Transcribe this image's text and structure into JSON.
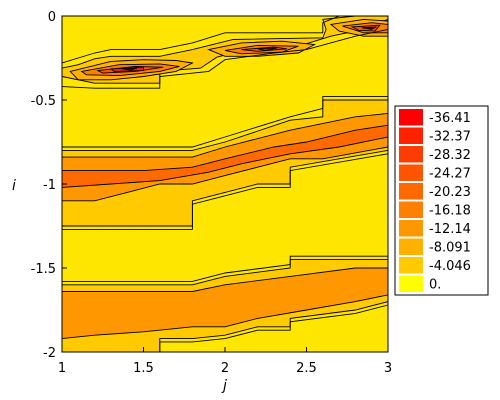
{
  "chart_data": {
    "type": "contour",
    "title": "",
    "xlabel": "j",
    "ylabel": "i",
    "xlim": [
      1,
      3
    ],
    "ylim": [
      -2,
      0
    ],
    "x_ticks": [
      "1",
      "1.5",
      "2",
      "2.5",
      "3"
    ],
    "y_ticks": [
      "0",
      "-0.5",
      "-1",
      "-1.5",
      "-2"
    ],
    "legend_position": "right",
    "legend": {
      "entries": [
        {
          "label": "-36.41",
          "value": -36.41,
          "color": "#ff0000"
        },
        {
          "label": "-32.37",
          "value": -32.37,
          "color": "#ff2200"
        },
        {
          "label": "-28.32",
          "value": -28.32,
          "color": "#ff3c00"
        },
        {
          "label": "-24.27",
          "value": -24.27,
          "color": "#ff5400"
        },
        {
          "label": "-20.23",
          "value": -20.23,
          "color": "#ff6a00"
        },
        {
          "label": "-16.18",
          "value": -16.18,
          "color": "#ff8000"
        },
        {
          "label": "-12.14",
          "value": -12.14,
          "color": "#ff9800"
        },
        {
          "label": "-8.091",
          "value": -8.091,
          "color": "#ffb000"
        },
        {
          "label": "-4.046",
          "value": -4.046,
          "color": "#ffca00"
        },
        {
          "label": "0.",
          "value": 0,
          "color": "#ffff00"
        }
      ]
    },
    "background_color": "#ffe600",
    "regions": [
      {
        "level": -4.046,
        "color": "#ffca00",
        "points": [
          [
            1.2,
            -0.255
          ],
          [
            1.3,
            -0.24
          ],
          [
            1.6,
            -0.24
          ],
          [
            1.8,
            -0.2
          ],
          [
            2.05,
            -0.14
          ],
          [
            2.6,
            -0.13
          ],
          [
            2.62,
            -0.08
          ],
          [
            2.6,
            -0.02
          ],
          [
            2.8,
            0
          ],
          [
            3,
            0
          ],
          [
            3,
            -0.02
          ],
          [
            2.8,
            -0.09
          ],
          [
            2.65,
            -0.12
          ],
          [
            2.45,
            -0.18
          ],
          [
            2.3,
            -0.2
          ],
          [
            2.15,
            -0.2
          ],
          [
            2.05,
            -0.22
          ],
          [
            1.95,
            -0.245
          ],
          [
            1.85,
            -0.31
          ],
          [
            1.6,
            -0.33
          ],
          [
            1.6,
            -0.4
          ],
          [
            1.2,
            -0.4
          ],
          [
            1,
            -0.36
          ],
          [
            1,
            -0.31
          ],
          [
            1.1,
            -0.29
          ]
        ]
      },
      {
        "level": -4.046,
        "color": "#ffca00",
        "points": [
          [
            1,
            -0.8
          ],
          [
            1.8,
            -0.8
          ],
          [
            2,
            -0.75
          ],
          [
            2.4,
            -0.62
          ],
          [
            2.6,
            -0.6
          ],
          [
            2.6,
            -0.5
          ],
          [
            3,
            -0.5
          ],
          [
            3,
            -0.8
          ],
          [
            2.4,
            -0.9
          ],
          [
            2.4,
            -1.0
          ],
          [
            2.2,
            -1.0
          ],
          [
            2.0,
            -1.05
          ],
          [
            1.8,
            -1.1
          ],
          [
            1.8,
            -1.25
          ],
          [
            1,
            -1.25
          ]
        ]
      },
      {
        "level": -4.046,
        "color": "#ffca00",
        "points": [
          [
            1,
            -1.6
          ],
          [
            1.8,
            -1.6
          ],
          [
            2,
            -1.55
          ],
          [
            2.4,
            -1.5
          ],
          [
            2.4,
            -1.45
          ],
          [
            3,
            -1.45
          ],
          [
            3,
            -1.7
          ],
          [
            2.8,
            -1.75
          ],
          [
            2.4,
            -1.8
          ],
          [
            2.4,
            -1.85
          ],
          [
            2.2,
            -1.85
          ],
          [
            2.0,
            -1.9
          ],
          [
            1.8,
            -1.92
          ],
          [
            1.6,
            -1.92
          ],
          [
            1.6,
            -2
          ],
          [
            1,
            -2
          ]
        ]
      },
      {
        "level": -12.14,
        "color": "#ff9800",
        "points": [
          [
            1,
            -0.84
          ],
          [
            1.8,
            -0.84
          ],
          [
            2,
            -0.78
          ],
          [
            2.4,
            -0.68
          ],
          [
            2.8,
            -0.6
          ],
          [
            3,
            -0.58
          ],
          [
            3,
            -0.78
          ],
          [
            2.6,
            -0.85
          ],
          [
            2.4,
            -0.85
          ],
          [
            2.2,
            -0.9
          ],
          [
            2,
            -0.95
          ],
          [
            1.8,
            -1.0
          ],
          [
            1.6,
            -1.0
          ],
          [
            1.4,
            -1.05
          ],
          [
            1.2,
            -1.1
          ],
          [
            1,
            -1.1
          ]
        ]
      },
      {
        "level": -12.14,
        "color": "#ff9800",
        "points": [
          [
            1,
            -1.64
          ],
          [
            1.8,
            -1.64
          ],
          [
            2,
            -1.6
          ],
          [
            2.4,
            -1.55
          ],
          [
            2.8,
            -1.5
          ],
          [
            3,
            -1.5
          ],
          [
            3,
            -1.66
          ],
          [
            2.8,
            -1.7
          ],
          [
            2.5,
            -1.75
          ],
          [
            2.2,
            -1.8
          ],
          [
            2,
            -1.85
          ],
          [
            1.8,
            -1.85
          ],
          [
            1.5,
            -1.88
          ],
          [
            1.2,
            -1.9
          ],
          [
            1,
            -1.92
          ]
        ]
      },
      {
        "level": -20.23,
        "color": "#ff6a00",
        "points": [
          [
            1,
            -0.92
          ],
          [
            1.5,
            -0.92
          ],
          [
            1.8,
            -0.9
          ],
          [
            2,
            -0.85
          ],
          [
            2.3,
            -0.78
          ],
          [
            2.5,
            -0.75
          ],
          [
            2.8,
            -0.68
          ],
          [
            3,
            -0.65
          ],
          [
            3,
            -0.72
          ],
          [
            2.7,
            -0.78
          ],
          [
            2.4,
            -0.82
          ],
          [
            2.1,
            -0.88
          ],
          [
            1.9,
            -0.93
          ],
          [
            1.6,
            -0.98
          ],
          [
            1.3,
            -1.0
          ],
          [
            1,
            -1.02
          ]
        ]
      },
      {
        "level": -8.091,
        "color": "#ffb000",
        "points": [
          [
            1.05,
            -0.33
          ],
          [
            1.3,
            -0.27
          ],
          [
            1.5,
            -0.26
          ],
          [
            1.7,
            -0.265
          ],
          [
            1.8,
            -0.28
          ],
          [
            1.7,
            -0.33
          ],
          [
            1.5,
            -0.36
          ],
          [
            1.3,
            -0.38
          ],
          [
            1.1,
            -0.38
          ]
        ]
      },
      {
        "level": -8.091,
        "color": "#ffb000",
        "points": [
          [
            1.9,
            -0.2
          ],
          [
            2.1,
            -0.16
          ],
          [
            2.35,
            -0.15
          ],
          [
            2.55,
            -0.17
          ],
          [
            2.45,
            -0.22
          ],
          [
            2.2,
            -0.24
          ],
          [
            2.0,
            -0.24
          ]
        ]
      },
      {
        "level": -8.091,
        "color": "#ffb000",
        "points": [
          [
            2.65,
            -0.05
          ],
          [
            2.85,
            -0.02
          ],
          [
            3,
            -0.03
          ],
          [
            3,
            -0.12
          ],
          [
            2.85,
            -0.12
          ],
          [
            2.7,
            -0.09
          ]
        ]
      },
      {
        "level": -16.18,
        "color": "#ff8000",
        "points": [
          [
            1.12,
            -0.33
          ],
          [
            1.35,
            -0.29
          ],
          [
            1.6,
            -0.285
          ],
          [
            1.72,
            -0.3
          ],
          [
            1.6,
            -0.33
          ],
          [
            1.35,
            -0.355
          ],
          [
            1.15,
            -0.35
          ]
        ]
      },
      {
        "level": -16.18,
        "color": "#ff8000",
        "points": [
          [
            2.0,
            -0.205
          ],
          [
            2.2,
            -0.175
          ],
          [
            2.45,
            -0.18
          ],
          [
            2.35,
            -0.215
          ],
          [
            2.1,
            -0.225
          ]
        ]
      },
      {
        "level": -16.18,
        "color": "#ff8000",
        "points": [
          [
            2.72,
            -0.06
          ],
          [
            2.9,
            -0.04
          ],
          [
            3,
            -0.05
          ],
          [
            3,
            -0.1
          ],
          [
            2.85,
            -0.1
          ]
        ]
      },
      {
        "level": -24.27,
        "color": "#ff5400",
        "points": [
          [
            1.22,
            -0.325
          ],
          [
            1.45,
            -0.3
          ],
          [
            1.62,
            -0.305
          ],
          [
            1.45,
            -0.33
          ],
          [
            1.25,
            -0.34
          ]
        ]
      },
      {
        "level": -24.27,
        "color": "#ff5400",
        "points": [
          [
            2.1,
            -0.2
          ],
          [
            2.3,
            -0.185
          ],
          [
            2.38,
            -0.195
          ],
          [
            2.2,
            -0.21
          ]
        ]
      },
      {
        "level": -24.27,
        "color": "#ff5400",
        "points": [
          [
            2.78,
            -0.065
          ],
          [
            2.95,
            -0.055
          ],
          [
            2.92,
            -0.09
          ],
          [
            2.82,
            -0.085
          ]
        ]
      },
      {
        "level": -32.37,
        "color": "#ff2200",
        "points": [
          [
            1.3,
            -0.315
          ],
          [
            1.5,
            -0.305
          ],
          [
            1.5,
            -0.325
          ],
          [
            1.32,
            -0.33
          ]
        ]
      },
      {
        "level": -32.37,
        "color": "#ff2200",
        "points": [
          [
            2.2,
            -0.195
          ],
          [
            2.32,
            -0.19
          ],
          [
            2.25,
            -0.205
          ]
        ]
      },
      {
        "level": -32.37,
        "color": "#ff2200",
        "points": [
          [
            2.84,
            -0.07
          ],
          [
            2.93,
            -0.065
          ],
          [
            2.9,
            -0.08
          ]
        ]
      },
      {
        "level": -36.41,
        "color": "#c00000",
        "points": [
          [
            1.36,
            -0.313
          ],
          [
            1.46,
            -0.31
          ],
          [
            1.42,
            -0.322
          ]
        ]
      },
      {
        "level": -36.41,
        "color": "#c00000",
        "points": [
          [
            2.87,
            -0.07
          ],
          [
            2.91,
            -0.069
          ],
          [
            2.89,
            -0.076
          ]
        ]
      }
    ],
    "contours": [
      [
        [
          1,
          -0.28
        ],
        [
          1.2,
          -0.22
        ],
        [
          1.3,
          -0.2
        ],
        [
          1.6,
          -0.2
        ],
        [
          1.8,
          -0.16
        ],
        [
          2.0,
          -0.1
        ],
        [
          2.6,
          -0.1
        ],
        [
          2.6,
          -0.04
        ],
        [
          2.7,
          0
        ]
      ],
      [
        [
          1,
          -0.42
        ],
        [
          1.2,
          -0.43
        ],
        [
          1.6,
          -0.43
        ],
        [
          1.6,
          -0.36
        ],
        [
          1.9,
          -0.33
        ],
        [
          2.0,
          -0.26
        ],
        [
          2.3,
          -0.22
        ],
        [
          2.5,
          -0.2
        ],
        [
          2.8,
          -0.12
        ],
        [
          3,
          -0.08
        ]
      ],
      [
        [
          1,
          -0.78
        ],
        [
          1.8,
          -0.78
        ],
        [
          2,
          -0.72
        ],
        [
          2.4,
          -0.6
        ],
        [
          2.6,
          -0.55
        ],
        [
          2.6,
          -0.48
        ],
        [
          3,
          -0.48
        ]
      ],
      [
        [
          1,
          -1.27
        ],
        [
          1.8,
          -1.27
        ],
        [
          1.8,
          -1.12
        ],
        [
          2,
          -1.07
        ],
        [
          2.2,
          -1.02
        ],
        [
          2.4,
          -1.02
        ],
        [
          2.4,
          -0.92
        ],
        [
          3,
          -0.82
        ]
      ],
      [
        [
          1,
          -1.58
        ],
        [
          1.8,
          -1.58
        ],
        [
          2,
          -1.53
        ],
        [
          2.4,
          -1.48
        ],
        [
          2.4,
          -1.43
        ],
        [
          3,
          -1.43
        ]
      ],
      [
        [
          1.6,
          -2
        ],
        [
          1.6,
          -1.94
        ],
        [
          1.8,
          -1.94
        ],
        [
          2,
          -1.92
        ],
        [
          2.2,
          -1.87
        ],
        [
          2.4,
          -1.87
        ],
        [
          2.4,
          -1.82
        ],
        [
          2.8,
          -1.77
        ],
        [
          3,
          -1.72
        ]
      ]
    ]
  }
}
